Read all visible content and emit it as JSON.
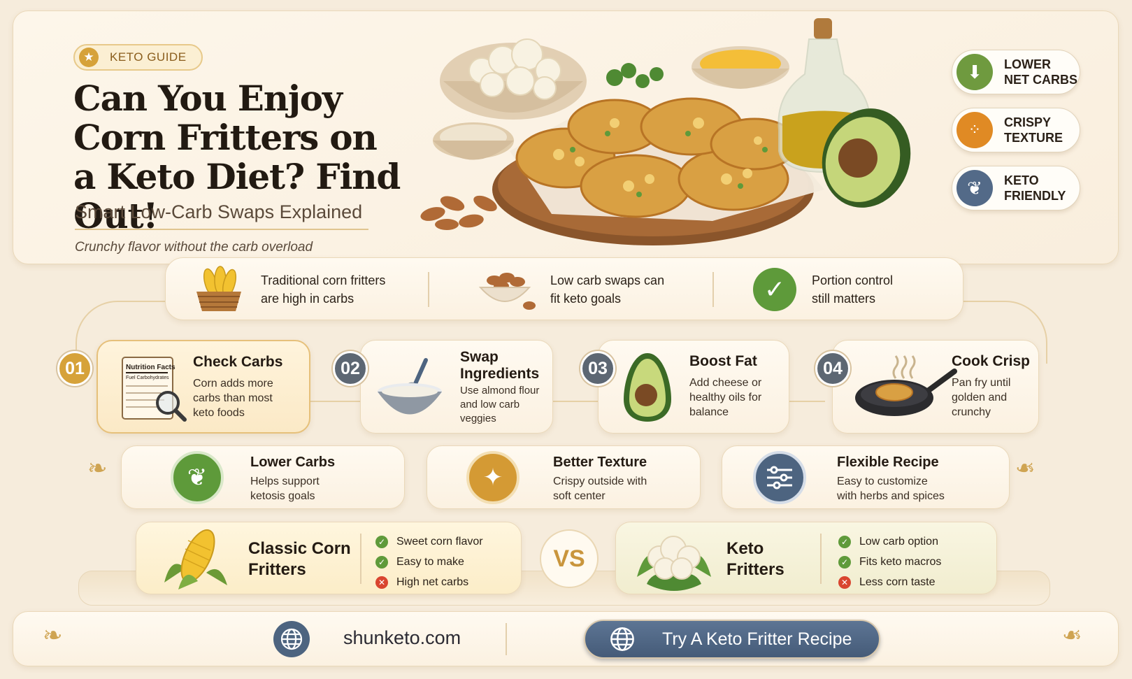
{
  "hero": {
    "badge": "KETO GUIDE",
    "title_lines": [
      "Can You Enjoy",
      "Corn Fritters on",
      "a Keto Diet? Find Out!"
    ],
    "subtitle": "Smart Low-Carb Swaps Explained",
    "tagline": "Crunchy flavor without the carb overload",
    "illustration": "corn-fritters-platter"
  },
  "features": [
    {
      "icon": "arrow-down-icon",
      "line1": "LOWER",
      "line2": "NET CARBS",
      "color": "#6f9a3f"
    },
    {
      "icon": "texture-dots-icon",
      "line1": "CRISPY",
      "line2": "TEXTURE",
      "color": "#e08a24"
    },
    {
      "icon": "leaf-icon",
      "line1": "KETO",
      "line2": "FRIENDLY",
      "color": "#536a88"
    }
  ],
  "facts": [
    {
      "icon": "corn-basket-icon",
      "line1": "Traditional corn fritters",
      "line2": "are high in carbs"
    },
    {
      "icon": "almond-bowl-icon",
      "line1": "Low carb swaps can",
      "line2": "fit keto goals"
    },
    {
      "icon": "check-circle-icon",
      "line1": "Portion control",
      "line2": "still matters"
    }
  ],
  "steps": [
    {
      "num": "01",
      "title": "Check Carbs",
      "desc": [
        "Corn adds more",
        "carbs than most",
        "keto foods"
      ],
      "icon": "nutrition-facts-icon",
      "label": "Nutrition Facts",
      "label2": "Fuel Carbohydrates",
      "color": "#d6a23a"
    },
    {
      "num": "02",
      "title": "Swap Ingredients",
      "title_lines": [
        "Swap",
        "Ingredients"
      ],
      "desc": [
        "Use almond flour",
        "and low carb",
        "veggies"
      ],
      "icon": "mixing-bowl-icon",
      "color": "#5d6773"
    },
    {
      "num": "03",
      "title": "Boost Fat",
      "desc": [
        "Add cheese or",
        "healthy oils for",
        "balance"
      ],
      "icon": "avocado-icon",
      "color": "#5d6773"
    },
    {
      "num": "04",
      "title": "Cook Crisp",
      "desc": [
        "Pan fry until",
        "golden and",
        "crunchy"
      ],
      "icon": "frying-pan-icon",
      "color": "#5d6773"
    }
  ],
  "benefits": [
    {
      "title": "Lower Carbs",
      "desc": [
        "Helps support",
        "ketosis goals"
      ],
      "icon": "leaf-icon",
      "color": "#5e9a3a"
    },
    {
      "title": "Better Texture",
      "desc": [
        "Crispy outside with",
        "soft center"
      ],
      "icon": "sparkle-icon",
      "color": "#d49a34"
    },
    {
      "title": "Flexible Recipe",
      "desc": [
        "Easy to customize",
        "with herbs and spices"
      ],
      "icon": "sliders-icon",
      "color": "#4d6480"
    }
  ],
  "comparison": {
    "left": {
      "title_lines": [
        "Classic Corn",
        "Fritters"
      ],
      "icon": "corn-cob-icon",
      "items": [
        {
          "text": "Sweet corn flavor",
          "ok": true
        },
        {
          "text": "Easy to make",
          "ok": true
        },
        {
          "text": "High net carbs",
          "ok": false
        }
      ]
    },
    "vs": "VS",
    "right": {
      "title_lines": [
        "Keto",
        "Fritters"
      ],
      "icon": "cauliflower-icon",
      "items": [
        {
          "text": "Low carb option",
          "ok": true
        },
        {
          "text": "Fits keto macros",
          "ok": true
        },
        {
          "text": "Less corn taste",
          "ok": false
        }
      ]
    }
  },
  "footer": {
    "site": "shunketo.com",
    "cta": "Try A Keto Fritter Recipe"
  }
}
